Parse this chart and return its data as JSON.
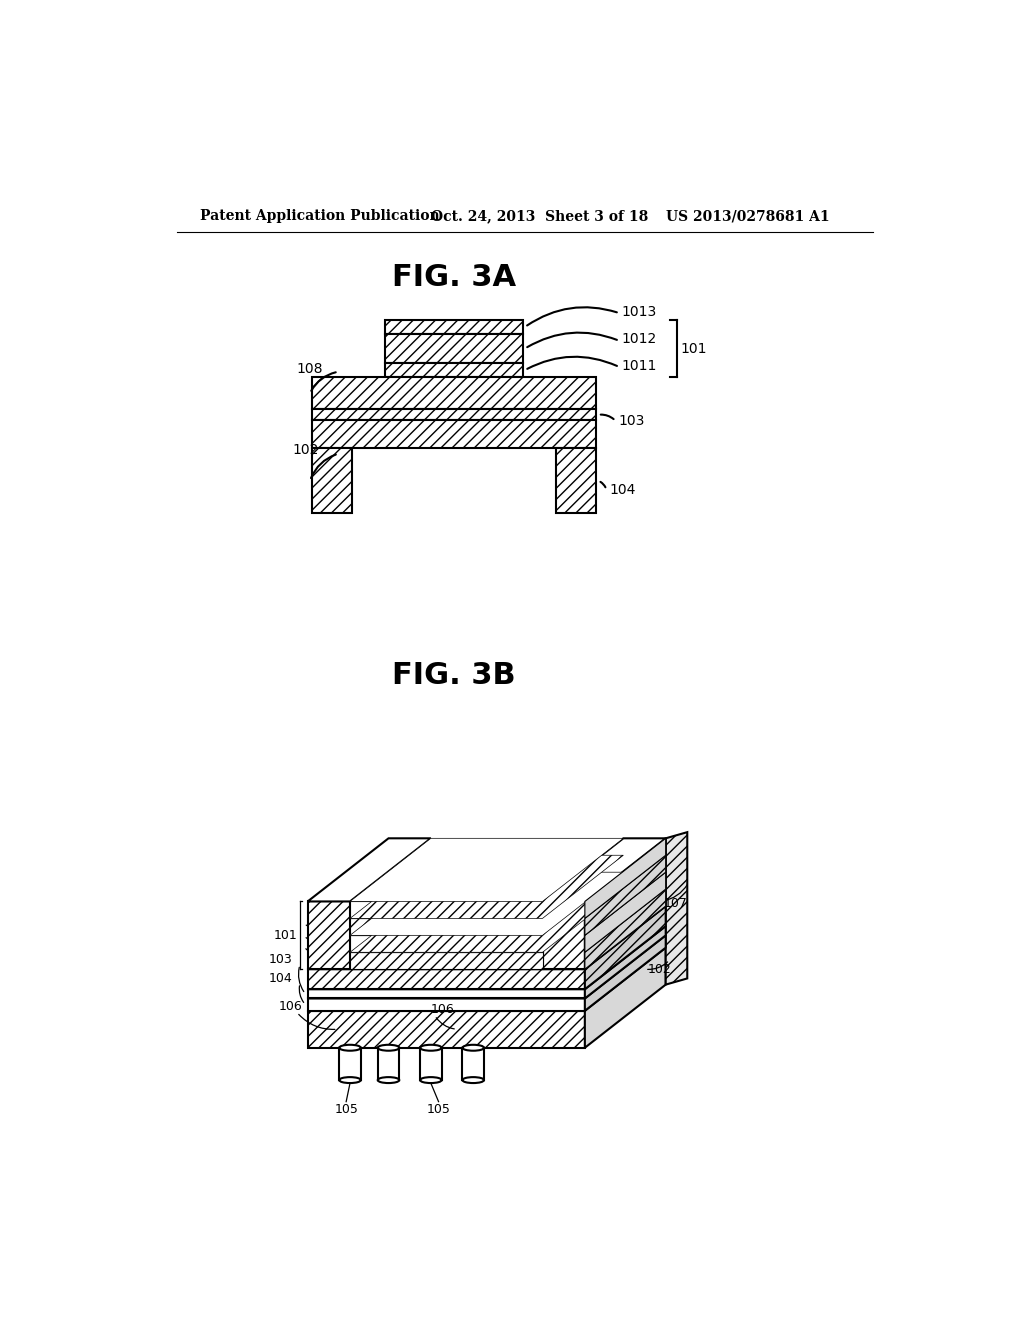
{
  "header_left": "Patent Application Publication",
  "header_center": "Oct. 24, 2013  Sheet 3 of 18",
  "header_right": "US 2013/0278681 A1",
  "fig3a_title": "FIG. 3A",
  "fig3b_title": "FIG. 3B",
  "bg_color": "#ffffff",
  "line_color": "#000000",
  "hatch_color": "#000000",
  "line_width": 1.5,
  "thin_line": 0.8
}
